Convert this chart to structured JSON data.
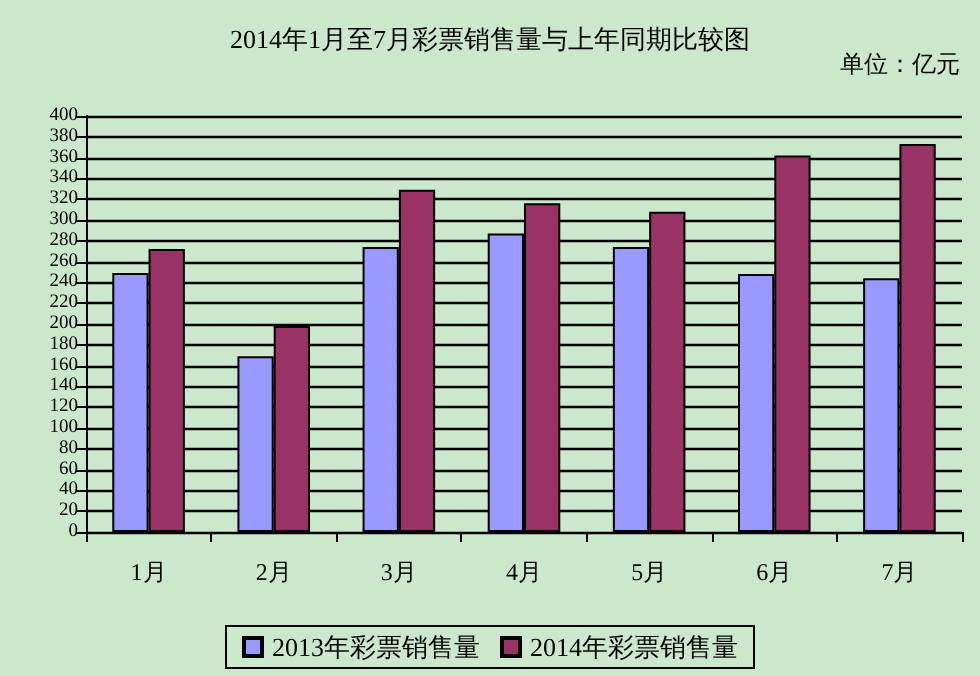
{
  "chart_data": {
    "type": "bar",
    "title": "2014年1月至7月彩票销售量与上年同期比较图",
    "annotations": [
      "单位：亿元"
    ],
    "categories": [
      "1月",
      "2月",
      "3月",
      "4月",
      "5月",
      "6月",
      "7月"
    ],
    "series": [
      {
        "name": "2013年彩票销售量",
        "color": "#9999ff",
        "values": [
          249,
          169,
          274,
          287,
          274,
          248,
          244
        ]
      },
      {
        "name": "2014年彩票销售量",
        "color": "#993366",
        "values": [
          272,
          198,
          329,
          316,
          308,
          362,
          373
        ]
      }
    ],
    "ylim": [
      0,
      400
    ],
    "yticks": [
      0,
      20,
      40,
      60,
      80,
      100,
      120,
      140,
      160,
      180,
      200,
      220,
      240,
      260,
      280,
      300,
      320,
      340,
      360,
      380,
      400
    ],
    "grid": "y",
    "legend": "bottom"
  }
}
